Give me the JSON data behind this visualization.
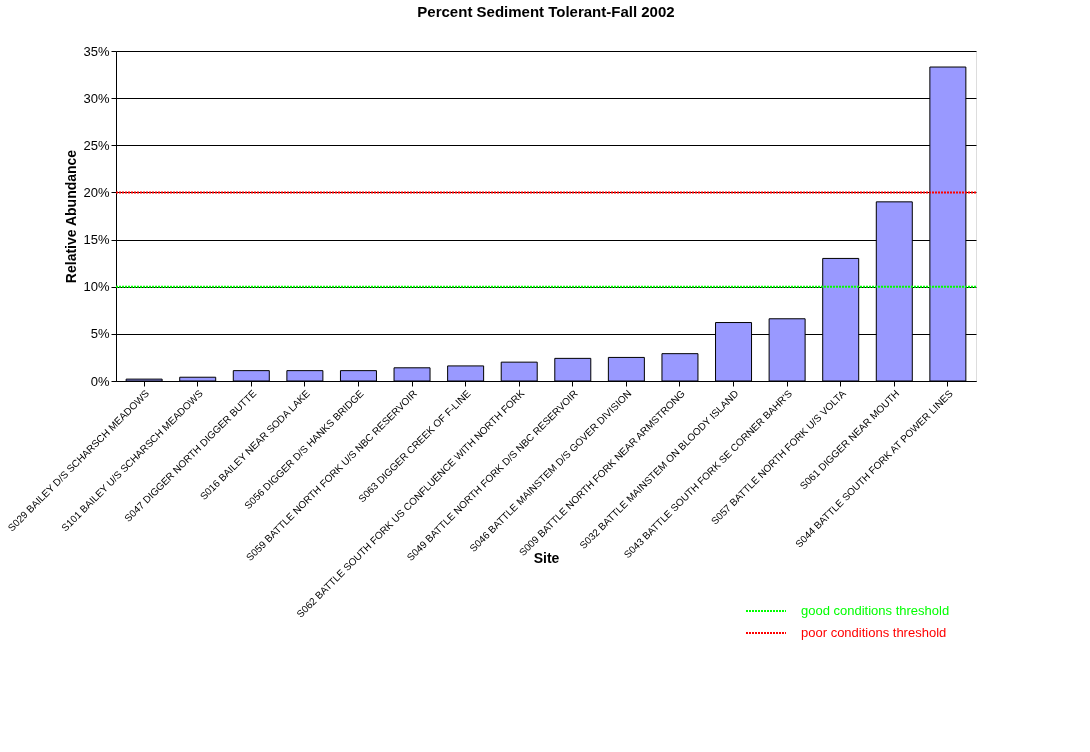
{
  "chart_data": {
    "type": "bar",
    "title": "Percent Sediment Tolerant-Fall 2002",
    "xlabel": "Site",
    "ylabel": "Relative Abundance",
    "categories": [
      "S029 BAILEY D/S SCHARSCH MEADOWS",
      "S101 BAILEY U/S SCHARSCH MEADOWS",
      "S047 DIGGER NORTH DIGGER BUTTE",
      "S016 BAILEY NEAR SODA LAKE",
      "S056 DIGGER D/S HANKS BRIDGE",
      "S059 BATTLE NORTH FORK U/S NBC RESERVOIR",
      "S063 DIGGER CREEK OF F-LINE",
      "S062 BATTLE SOUTH FORK US CONFLUENCE WITH NORTH FORK",
      "S049 BATTLE NORTH FORK D/S NBC RESERVOIR",
      "S046 BATTLE MAINSTEM D/S GOVER DIVISION",
      "S009 BATTLE NORTH FORK NEAR ARMSTRONG",
      "S032 BATTLE MAINSTEM ON BLOODY ISLAND",
      "S043 BATTLE SOUTH FORK SE CORNER BAHR'S",
      "S057 BATTLE NORTH FORK U/S VOLTA",
      "S061 DIGGER NEAR MOUTH",
      "S044 BATTLE SOUTH FORK AT POWER LINES"
    ],
    "values": [
      0.2,
      0.4,
      1.1,
      1.1,
      1.1,
      1.4,
      1.6,
      2.0,
      2.4,
      2.5,
      2.9,
      6.2,
      6.6,
      13.0,
      19.0,
      33.3
    ],
    "color": "#9999ff",
    "ylim": [
      0,
      35
    ],
    "yticks": [
      {
        "value": 0,
        "label": "0%"
      },
      {
        "value": 5,
        "label": "5%"
      },
      {
        "value": 10,
        "label": "10%"
      },
      {
        "value": 15,
        "label": "15%"
      },
      {
        "value": 20,
        "label": "20%"
      },
      {
        "value": 25,
        "label": "25%"
      },
      {
        "value": 30,
        "label": "30%"
      },
      {
        "value": 35,
        "label": "35%"
      }
    ],
    "grid": "y",
    "legend": "bottom right",
    "ref_lines": [
      {
        "axis": "y",
        "value": 10,
        "label": "good conditions threshold",
        "color": "#00ff00",
        "line_style": "dotted"
      },
      {
        "axis": "y",
        "value": 20,
        "label": "poor conditions threshold",
        "color": "#ff0000",
        "line_style": "dotted"
      }
    ]
  }
}
